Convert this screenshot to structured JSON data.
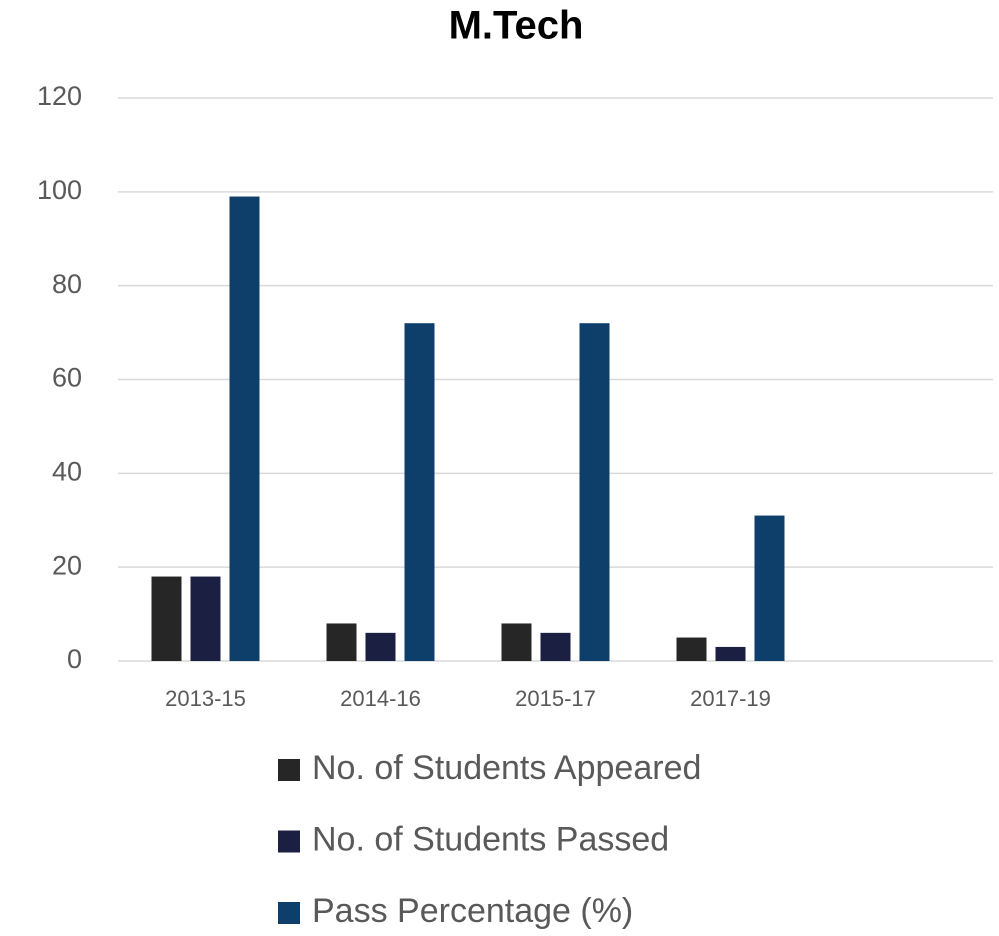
{
  "chart_data": {
    "type": "bar",
    "title": "M.Tech",
    "categories": [
      "2013-15",
      "2014-16",
      "2015-17",
      "2017-19",
      null
    ],
    "series": [
      {
        "name": "No. of Students Appeared",
        "color": "#262626",
        "values": [
          18,
          8,
          8,
          5,
          null
        ]
      },
      {
        "name": "No. of Students Passed",
        "color": "#1b1f42",
        "values": [
          18,
          6,
          6,
          3,
          null
        ]
      },
      {
        "name": "Pass Percentage (%)",
        "color": "#0e3f6a",
        "values": [
          99,
          72,
          72,
          31,
          null
        ]
      }
    ],
    "ylim": [
      0,
      120
    ],
    "yticks": [
      0,
      20,
      40,
      60,
      80,
      100,
      120
    ],
    "grid": true,
    "legend": "bottom"
  }
}
